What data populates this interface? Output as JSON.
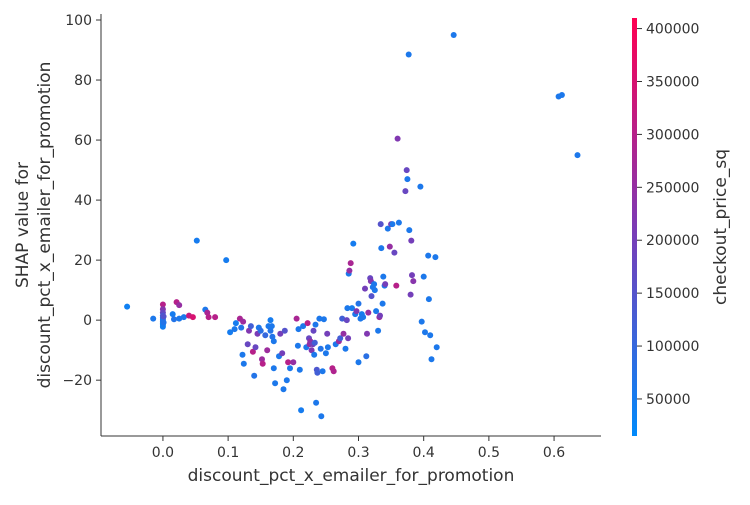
{
  "chart_data": {
    "type": "scatter",
    "xlabel": "discount_pct_x_emailer_for_promotion",
    "ylabel_lines": [
      "SHAP value for",
      "discount_pct_x_emailer_for_promotion"
    ],
    "colorbar_label": "checkout_price_sq",
    "xlim": [
      -0.095,
      0.672
    ],
    "ylim": [
      -38.6,
      102.0
    ],
    "x_ticks": [
      0.0,
      0.1,
      0.2,
      0.3,
      0.4,
      0.5,
      0.6
    ],
    "x_tick_labels": [
      "0.0",
      "0.1",
      "0.2",
      "0.3",
      "0.4",
      "0.5",
      "0.6"
    ],
    "y_ticks": [
      -20,
      0,
      20,
      40,
      60,
      80,
      100
    ],
    "y_tick_labels": [
      "−20",
      "0",
      "20",
      "40",
      "60",
      "80",
      "100"
    ],
    "color_range": [
      15000,
      410000
    ],
    "colorbar_ticks": [
      50000,
      100000,
      150000,
      200000,
      250000,
      300000,
      350000,
      400000
    ],
    "colorbar_tick_labels": [
      "50000",
      "100000",
      "150000",
      "200000",
      "250000",
      "300000",
      "350000",
      "400000"
    ],
    "colors": {
      "low": "#008afb",
      "mid": "#7c3ab5",
      "high": "#ff0052"
    },
    "points": [
      {
        "x": -0.055,
        "y": 4.5,
        "c": 40000
      },
      {
        "x": -0.015,
        "y": 0.5,
        "c": 60000
      },
      {
        "x": 0.0,
        "y": 5.2,
        "c": 300000
      },
      {
        "x": 0.0,
        "y": 3.6,
        "c": 230000
      },
      {
        "x": 0.0,
        "y": 2.5,
        "c": 180000
      },
      {
        "x": 0.0,
        "y": 1.5,
        "c": 130000
      },
      {
        "x": 0.0,
        "y": 0.8,
        "c": 100000
      },
      {
        "x": 0.0,
        "y": 0.2,
        "c": 80000
      },
      {
        "x": 0.0,
        "y": -0.4,
        "c": 60000
      },
      {
        "x": 0.0,
        "y": -1.0,
        "c": 50000
      },
      {
        "x": 0.0,
        "y": -1.6,
        "c": 40000
      },
      {
        "x": 0.0,
        "y": -2.2,
        "c": 45000
      },
      {
        "x": 0.001,
        "y": -0.8,
        "c": 70000
      },
      {
        "x": 0.001,
        "y": 1.2,
        "c": 150000
      },
      {
        "x": 0.015,
        "y": 2.0,
        "c": 50000
      },
      {
        "x": 0.017,
        "y": 0.3,
        "c": 70000
      },
      {
        "x": 0.021,
        "y": 6.0,
        "c": 300000
      },
      {
        "x": 0.025,
        "y": 5.0,
        "c": 250000
      },
      {
        "x": 0.025,
        "y": 0.5,
        "c": 60000
      },
      {
        "x": 0.032,
        "y": 1.0,
        "c": 60000
      },
      {
        "x": 0.04,
        "y": 1.5,
        "c": 320000
      },
      {
        "x": 0.046,
        "y": 1.0,
        "c": 350000
      },
      {
        "x": 0.052,
        "y": 26.5,
        "c": 50000
      },
      {
        "x": 0.065,
        "y": 3.5,
        "c": 60000
      },
      {
        "x": 0.068,
        "y": 2.5,
        "c": 280000
      },
      {
        "x": 0.07,
        "y": 1.0,
        "c": 300000
      },
      {
        "x": 0.08,
        "y": 1.0,
        "c": 300000
      },
      {
        "x": 0.097,
        "y": 20.0,
        "c": 50000
      },
      {
        "x": 0.103,
        "y": -4.0,
        "c": 50000
      },
      {
        "x": 0.11,
        "y": -3.0,
        "c": 60000
      },
      {
        "x": 0.112,
        "y": -1.0,
        "c": 50000
      },
      {
        "x": 0.118,
        "y": 0.5,
        "c": 280000
      },
      {
        "x": 0.12,
        "y": -2.5,
        "c": 70000
      },
      {
        "x": 0.122,
        "y": -11.5,
        "c": 60000
      },
      {
        "x": 0.123,
        "y": -0.5,
        "c": 260000
      },
      {
        "x": 0.124,
        "y": -14.5,
        "c": 60000
      },
      {
        "x": 0.13,
        "y": -8.0,
        "c": 180000
      },
      {
        "x": 0.132,
        "y": -3.5,
        "c": 220000
      },
      {
        "x": 0.135,
        "y": -2.0,
        "c": 120000
      },
      {
        "x": 0.138,
        "y": -10.5,
        "c": 300000
      },
      {
        "x": 0.14,
        "y": -18.5,
        "c": 70000
      },
      {
        "x": 0.142,
        "y": -9.0,
        "c": 180000
      },
      {
        "x": 0.145,
        "y": -4.5,
        "c": 210000
      },
      {
        "x": 0.147,
        "y": -2.5,
        "c": 60000
      },
      {
        "x": 0.15,
        "y": -3.5,
        "c": 80000
      },
      {
        "x": 0.152,
        "y": -13.0,
        "c": 260000
      },
      {
        "x": 0.153,
        "y": -14.5,
        "c": 300000
      },
      {
        "x": 0.157,
        "y": -5.0,
        "c": 100000
      },
      {
        "x": 0.16,
        "y": -10.0,
        "c": 260000
      },
      {
        "x": 0.162,
        "y": -2.0,
        "c": 60000
      },
      {
        "x": 0.165,
        "y": 0.0,
        "c": 50000
      },
      {
        "x": 0.165,
        "y": -3.5,
        "c": 70000
      },
      {
        "x": 0.167,
        "y": -2.0,
        "c": 60000
      },
      {
        "x": 0.168,
        "y": -5.5,
        "c": 70000
      },
      {
        "x": 0.17,
        "y": -7.0,
        "c": 60000
      },
      {
        "x": 0.17,
        "y": -16.0,
        "c": 60000
      },
      {
        "x": 0.172,
        "y": -21.0,
        "c": 60000
      },
      {
        "x": 0.178,
        "y": -12.0,
        "c": 60000
      },
      {
        "x": 0.18,
        "y": -4.5,
        "c": 200000
      },
      {
        "x": 0.183,
        "y": -11.0,
        "c": 200000
      },
      {
        "x": 0.185,
        "y": -23.0,
        "c": 60000
      },
      {
        "x": 0.187,
        "y": -3.5,
        "c": 150000
      },
      {
        "x": 0.19,
        "y": -20.0,
        "c": 60000
      },
      {
        "x": 0.192,
        "y": -14.0,
        "c": 300000
      },
      {
        "x": 0.195,
        "y": -16.0,
        "c": 60000
      },
      {
        "x": 0.2,
        "y": -14.0,
        "c": 250000
      },
      {
        "x": 0.205,
        "y": 0.5,
        "c": 280000
      },
      {
        "x": 0.207,
        "y": -8.5,
        "c": 60000
      },
      {
        "x": 0.208,
        "y": -3.0,
        "c": 60000
      },
      {
        "x": 0.21,
        "y": -16.5,
        "c": 60000
      },
      {
        "x": 0.212,
        "y": -30.0,
        "c": 50000
      },
      {
        "x": 0.215,
        "y": -2.0,
        "c": 60000
      },
      {
        "x": 0.22,
        "y": -9.0,
        "c": 60000
      },
      {
        "x": 0.222,
        "y": -1.0,
        "c": 300000
      },
      {
        "x": 0.224,
        "y": -6.0,
        "c": 180000
      },
      {
        "x": 0.225,
        "y": -8.0,
        "c": 250000
      },
      {
        "x": 0.226,
        "y": -7.0,
        "c": 240000
      },
      {
        "x": 0.228,
        "y": -10.0,
        "c": 220000
      },
      {
        "x": 0.23,
        "y": -8.0,
        "c": 200000
      },
      {
        "x": 0.231,
        "y": -3.5,
        "c": 180000
      },
      {
        "x": 0.232,
        "y": -11.5,
        "c": 60000
      },
      {
        "x": 0.233,
        "y": -7.5,
        "c": 120000
      },
      {
        "x": 0.234,
        "y": -1.5,
        "c": 60000
      },
      {
        "x": 0.235,
        "y": -27.5,
        "c": 60000
      },
      {
        "x": 0.236,
        "y": -16.5,
        "c": 140000
      },
      {
        "x": 0.237,
        "y": -17.5,
        "c": 120000
      },
      {
        "x": 0.24,
        "y": 0.5,
        "c": 60000
      },
      {
        "x": 0.242,
        "y": -9.5,
        "c": 70000
      },
      {
        "x": 0.243,
        "y": -32.0,
        "c": 60000
      },
      {
        "x": 0.245,
        "y": -17.0,
        "c": 60000
      },
      {
        "x": 0.247,
        "y": 0.3,
        "c": 60000
      },
      {
        "x": 0.25,
        "y": -11.0,
        "c": 60000
      },
      {
        "x": 0.252,
        "y": -4.5,
        "c": 200000
      },
      {
        "x": 0.253,
        "y": -9.0,
        "c": 60000
      },
      {
        "x": 0.26,
        "y": -16.0,
        "c": 300000
      },
      {
        "x": 0.262,
        "y": -17.0,
        "c": 290000
      },
      {
        "x": 0.265,
        "y": -8.0,
        "c": 60000
      },
      {
        "x": 0.27,
        "y": -7.0,
        "c": 260000
      },
      {
        "x": 0.272,
        "y": -6.0,
        "c": 120000
      },
      {
        "x": 0.275,
        "y": 0.5,
        "c": 120000
      },
      {
        "x": 0.277,
        "y": -4.5,
        "c": 250000
      },
      {
        "x": 0.28,
        "y": -9.5,
        "c": 60000
      },
      {
        "x": 0.282,
        "y": 0.0,
        "c": 180000
      },
      {
        "x": 0.283,
        "y": 4.0,
        "c": 60000
      },
      {
        "x": 0.284,
        "y": -6.0,
        "c": 200000
      },
      {
        "x": 0.285,
        "y": 15.5,
        "c": 60000
      },
      {
        "x": 0.286,
        "y": 16.5,
        "c": 250000
      },
      {
        "x": 0.288,
        "y": 19.0,
        "c": 280000
      },
      {
        "x": 0.29,
        "y": 4.0,
        "c": 50000
      },
      {
        "x": 0.292,
        "y": 25.5,
        "c": 50000
      },
      {
        "x": 0.295,
        "y": 2.0,
        "c": 60000
      },
      {
        "x": 0.297,
        "y": 3.0,
        "c": 220000
      },
      {
        "x": 0.3,
        "y": 5.5,
        "c": 70000
      },
      {
        "x": 0.3,
        "y": -14.0,
        "c": 60000
      },
      {
        "x": 0.303,
        "y": 0.5,
        "c": 60000
      },
      {
        "x": 0.305,
        "y": 2.0,
        "c": 50000
      },
      {
        "x": 0.307,
        "y": 1.0,
        "c": 60000
      },
      {
        "x": 0.31,
        "y": 10.5,
        "c": 200000
      },
      {
        "x": 0.312,
        "y": -12.0,
        "c": 80000
      },
      {
        "x": 0.313,
        "y": -4.5,
        "c": 220000
      },
      {
        "x": 0.315,
        "y": 2.5,
        "c": 250000
      },
      {
        "x": 0.318,
        "y": 14.0,
        "c": 180000
      },
      {
        "x": 0.319,
        "y": 13.0,
        "c": 220000
      },
      {
        "x": 0.32,
        "y": 8.0,
        "c": 150000
      },
      {
        "x": 0.322,
        "y": 11.0,
        "c": 60000
      },
      {
        "x": 0.324,
        "y": 12.0,
        "c": 60000
      },
      {
        "x": 0.325,
        "y": 10.0,
        "c": 60000
      },
      {
        "x": 0.327,
        "y": 3.0,
        "c": 60000
      },
      {
        "x": 0.33,
        "y": -3.5,
        "c": 60000
      },
      {
        "x": 0.332,
        "y": 1.0,
        "c": 260000
      },
      {
        "x": 0.333,
        "y": 1.5,
        "c": 200000
      },
      {
        "x": 0.334,
        "y": 32.0,
        "c": 150000
      },
      {
        "x": 0.335,
        "y": 24.0,
        "c": 60000
      },
      {
        "x": 0.337,
        "y": 5.5,
        "c": 60000
      },
      {
        "x": 0.338,
        "y": 14.5,
        "c": 60000
      },
      {
        "x": 0.34,
        "y": 11.5,
        "c": 60000
      },
      {
        "x": 0.341,
        "y": 12.0,
        "c": 200000
      },
      {
        "x": 0.345,
        "y": 30.5,
        "c": 60000
      },
      {
        "x": 0.348,
        "y": 24.5,
        "c": 250000
      },
      {
        "x": 0.35,
        "y": 32.0,
        "c": 230000
      },
      {
        "x": 0.352,
        "y": 32.0,
        "c": 60000
      },
      {
        "x": 0.355,
        "y": 22.5,
        "c": 180000
      },
      {
        "x": 0.358,
        "y": 11.5,
        "c": 300000
      },
      {
        "x": 0.36,
        "y": 60.5,
        "c": 220000
      },
      {
        "x": 0.362,
        "y": 32.5,
        "c": 60000
      },
      {
        "x": 0.372,
        "y": 43.0,
        "c": 180000
      },
      {
        "x": 0.374,
        "y": 50.0,
        "c": 180000
      },
      {
        "x": 0.375,
        "y": 47.0,
        "c": 60000
      },
      {
        "x": 0.377,
        "y": 88.5,
        "c": 60000
      },
      {
        "x": 0.378,
        "y": 30.0,
        "c": 60000
      },
      {
        "x": 0.38,
        "y": 8.5,
        "c": 200000
      },
      {
        "x": 0.381,
        "y": 26.5,
        "c": 200000
      },
      {
        "x": 0.382,
        "y": 15.0,
        "c": 200000
      },
      {
        "x": 0.384,
        "y": 13.0,
        "c": 230000
      },
      {
        "x": 0.395,
        "y": 44.5,
        "c": 60000
      },
      {
        "x": 0.397,
        "y": -0.5,
        "c": 60000
      },
      {
        "x": 0.4,
        "y": 14.5,
        "c": 60000
      },
      {
        "x": 0.402,
        "y": -4.0,
        "c": 60000
      },
      {
        "x": 0.407,
        "y": 21.5,
        "c": 60000
      },
      {
        "x": 0.408,
        "y": 7.0,
        "c": 60000
      },
      {
        "x": 0.41,
        "y": -5.0,
        "c": 60000
      },
      {
        "x": 0.412,
        "y": -13.0,
        "c": 60000
      },
      {
        "x": 0.418,
        "y": 21.0,
        "c": 60000
      },
      {
        "x": 0.42,
        "y": -9.0,
        "c": 60000
      },
      {
        "x": 0.446,
        "y": 95.0,
        "c": 60000
      },
      {
        "x": 0.607,
        "y": 74.5,
        "c": 60000
      },
      {
        "x": 0.612,
        "y": 75.0,
        "c": 60000
      },
      {
        "x": 0.636,
        "y": 55.0,
        "c": 60000
      }
    ]
  }
}
